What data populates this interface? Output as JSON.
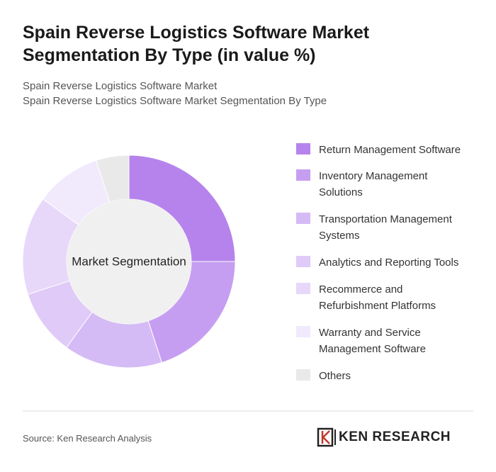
{
  "chart_data": {
    "type": "donut",
    "title": "Spain Reverse Logistics Software Market Segmentation By Type (in value %)",
    "subtitle": [
      "Spain Reverse Logistics Software Market",
      "Spain Reverse Logistics Software Market Segmentation By Type"
    ],
    "center_label": "Market Segmentation",
    "categories": [
      "Return Management Software",
      "Inventory Management Solutions",
      "Transportation Management Systems",
      "Analytics and Reporting Tools",
      "Recommerce and Refurbishment Platforms",
      "Warranty and Service Management Software",
      "Others"
    ],
    "values": [
      25,
      20,
      15,
      10,
      15,
      10,
      5
    ],
    "colors": [
      "#b683ec",
      "#c69ef1",
      "#d5bbf5",
      "#dfcaf8",
      "#e7d8fa",
      "#f1e9fc",
      "#e9e9e9"
    ],
    "legend": "right",
    "source": "Source: Ken Research Analysis",
    "logo": "KEN RESEARCH"
  }
}
